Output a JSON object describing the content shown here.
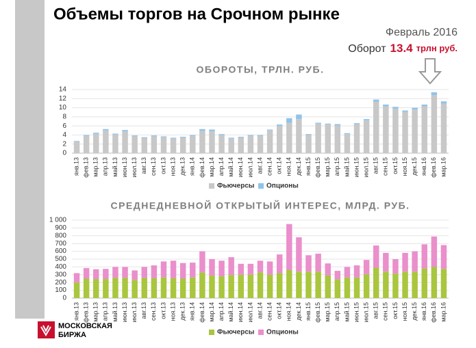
{
  "header": {
    "title": "Объемы торгов на Срочном рынке",
    "period": "Февраль 2016",
    "turnover_label": "Оборот",
    "turnover_value": 13.4,
    "turnover_unit": "трлн руб."
  },
  "logo": {
    "line1": "МОСКОВСКАЯ",
    "line2": "БИРЖА"
  },
  "chart_data": [
    {
      "type": "stacked_bar",
      "title": "ОБОРОТЫ, ТРЛН. РУБ.",
      "categories": [
        "янв.13",
        "фев.13",
        "мар.13",
        "апр.13",
        "май.13",
        "июн.13",
        "июл.13",
        "авг.13",
        "сен.13",
        "окт.13",
        "ноя.13",
        "дек.13",
        "янв.14",
        "фев.14",
        "мар.14",
        "апр.14",
        "май.14",
        "июн.14",
        "июл.14",
        "авг.14",
        "сен.14",
        "окт.14",
        "ноя.14",
        "дек.14",
        "янв.15",
        "фев.15",
        "мар.15",
        "апр.15",
        "май.15",
        "июн.15",
        "июл.15",
        "авг.15",
        "сен.15",
        "окт.15",
        "ноя.15",
        "дек.15",
        "янв.16",
        "фев.16",
        "мар.16"
      ],
      "series": [
        {
          "name": "Фьючерсы",
          "color": "#c8c8c8",
          "values": [
            2.6,
            3.8,
            4.3,
            5.0,
            4.1,
            4.8,
            3.7,
            3.3,
            3.7,
            3.5,
            3.2,
            3.4,
            3.8,
            4.9,
            4.8,
            4.0,
            3.2,
            3.4,
            3.8,
            3.8,
            5.0,
            6.0,
            6.7,
            7.5,
            4.0,
            6.5,
            6.3,
            6.1,
            4.2,
            6.4,
            7.2,
            11.3,
            10.3,
            9.8,
            9.1,
            9.6,
            10.3,
            12.8,
            10.9
          ]
        },
        {
          "name": "Опционы",
          "color": "#8fc4ea",
          "values": [
            0.1,
            0.2,
            0.2,
            0.3,
            0.2,
            0.3,
            0.2,
            0.2,
            0.2,
            0.2,
            0.2,
            0.2,
            0.2,
            0.4,
            0.4,
            0.2,
            0.2,
            0.2,
            0.2,
            0.2,
            0.2,
            0.3,
            1.0,
            1.0,
            0.2,
            0.2,
            0.2,
            0.3,
            0.2,
            0.2,
            0.3,
            0.5,
            0.4,
            0.4,
            0.3,
            0.4,
            0.4,
            0.6,
            0.5
          ]
        }
      ],
      "ylim": [
        0,
        14
      ],
      "yticks": [
        0,
        2,
        4,
        6,
        8,
        10,
        12,
        14
      ],
      "grid": true,
      "legend": "bottom"
    },
    {
      "type": "stacked_bar",
      "title": "СРЕДНЕДНЕВНОЙ ОТКРЫТЫЙ ИНТЕРЕС, МЛРД. РУБ.",
      "categories": [
        "янв.13",
        "фев.13",
        "мар.13",
        "апр.13",
        "май.13",
        "июн.13",
        "июл.13",
        "авг.13",
        "сен.13",
        "окт.13",
        "ноя.13",
        "дек.13",
        "янв.14",
        "фев.14",
        "мар.14",
        "апр.14",
        "май.14",
        "июн.14",
        "июл.14",
        "авг.14",
        "сен.14",
        "окт.14",
        "ноя.14",
        "дек.14",
        "янв.15",
        "фев.15",
        "мар.15",
        "апр.15",
        "май.15",
        "июн.15",
        "июл.15",
        "авг.15",
        "сен.15",
        "окт.15",
        "ноя.15",
        "дек.15",
        "янв.16",
        "фев.16",
        "мар.16"
      ],
      "series": [
        {
          "name": "Фьючерсы",
          "color": "#a9c63e",
          "values": [
            200,
            250,
            245,
            245,
            260,
            260,
            235,
            260,
            255,
            265,
            255,
            250,
            265,
            330,
            290,
            280,
            295,
            300,
            300,
            330,
            300,
            320,
            360,
            340,
            340,
            340,
            290,
            240,
            265,
            265,
            305,
            390,
            340,
            315,
            340,
            340,
            380,
            400,
            375
          ]
        },
        {
          "name": "Опционы",
          "color": "#ea8fcc",
          "values": [
            120,
            135,
            125,
            130,
            140,
            140,
            120,
            140,
            165,
            205,
            225,
            200,
            190,
            270,
            210,
            200,
            230,
            140,
            140,
            150,
            170,
            240,
            590,
            440,
            210,
            230,
            155,
            110,
            135,
            155,
            185,
            285,
            240,
            185,
            240,
            260,
            310,
            390,
            305
          ]
        }
      ],
      "ylim": [
        0,
        1000
      ],
      "yticks": [
        0,
        100,
        200,
        300,
        400,
        500,
        600,
        700,
        800,
        900,
        {
          "value": 1000,
          "label": "1 000"
        }
      ],
      "grid": true,
      "legend": "bottom"
    }
  ]
}
